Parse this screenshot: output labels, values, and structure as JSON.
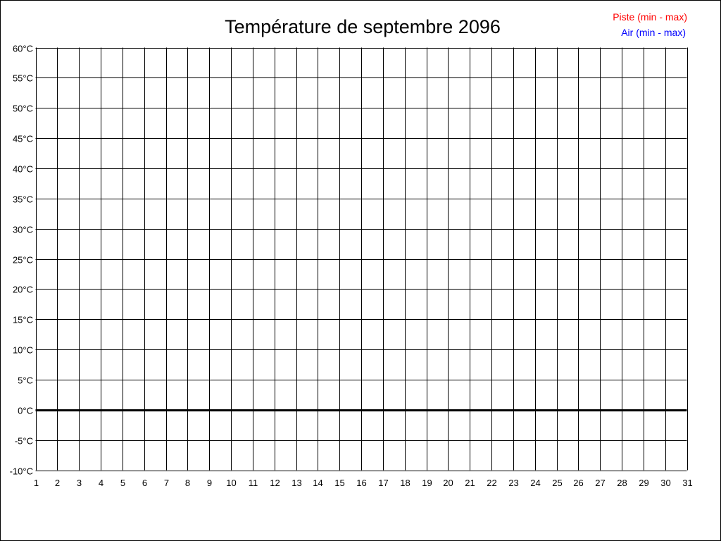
{
  "chart_data": {
    "type": "line",
    "title": "Température de septembre 2096",
    "xlabel": "",
    "ylabel": "",
    "x_ticks": [
      "1",
      "2",
      "3",
      "4",
      "5",
      "6",
      "7",
      "8",
      "9",
      "10",
      "11",
      "12",
      "13",
      "14",
      "15",
      "16",
      "17",
      "18",
      "19",
      "20",
      "21",
      "22",
      "23",
      "24",
      "25",
      "26",
      "27",
      "28",
      "29",
      "30",
      "31"
    ],
    "y_ticks": [
      60,
      55,
      50,
      45,
      40,
      35,
      30,
      25,
      20,
      15,
      10,
      5,
      0,
      -5,
      -10
    ],
    "y_unit": "°C",
    "xlim": [
      1,
      31
    ],
    "ylim": [
      -10,
      60
    ],
    "grid": true,
    "legend_placement": "top-right",
    "series": [
      {
        "name": "Piste (min - max)",
        "color": "#ff0000",
        "values": []
      },
      {
        "name": "Air (min - max)",
        "color": "#0000ff",
        "values": []
      }
    ],
    "zero_line": true
  }
}
